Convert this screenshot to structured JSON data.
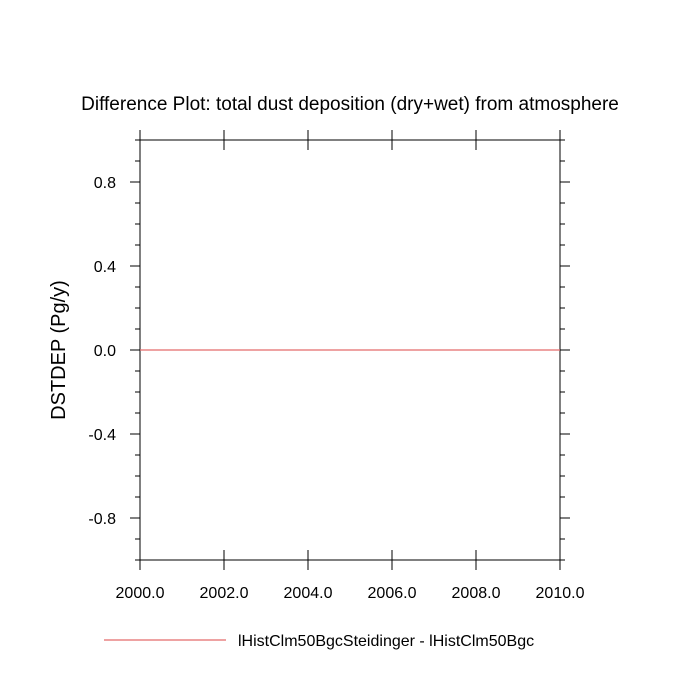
{
  "chart_data": {
    "type": "line",
    "title": "Difference Plot: total dust deposition (dry+wet) from atmosphere",
    "xlabel": "",
    "ylabel": "DSTDEP  (Pg/y)",
    "xlim": [
      2000.0,
      2010.0
    ],
    "ylim": [
      -1.0,
      1.0
    ],
    "xticks": [
      2000.0,
      2002.0,
      2004.0,
      2006.0,
      2008.0,
      2010.0
    ],
    "xtick_labels": [
      "2000.0",
      "2002.0",
      "2004.0",
      "2006.0",
      "2008.0",
      "2010.0"
    ],
    "yticks": [
      0.8,
      0.4,
      0.0,
      -0.4,
      -0.8
    ],
    "ytick_labels": [
      "0.8",
      "0.4",
      "0.0",
      "-0.4",
      "-0.8"
    ],
    "grid": false,
    "legend_position": "bottom",
    "series": [
      {
        "name": "lHistClm50BgcSteidinger - lHistClm50Bgc",
        "color": "#e36a6a",
        "x": [
          2000.0,
          2001.0,
          2002.0,
          2003.0,
          2004.0,
          2005.0,
          2006.0,
          2007.0,
          2008.0,
          2009.0,
          2010.0
        ],
        "y": [
          0.0,
          0.0,
          0.0,
          0.0,
          0.0,
          0.0,
          0.0,
          0.0,
          0.0,
          0.0,
          0.0
        ]
      }
    ]
  }
}
